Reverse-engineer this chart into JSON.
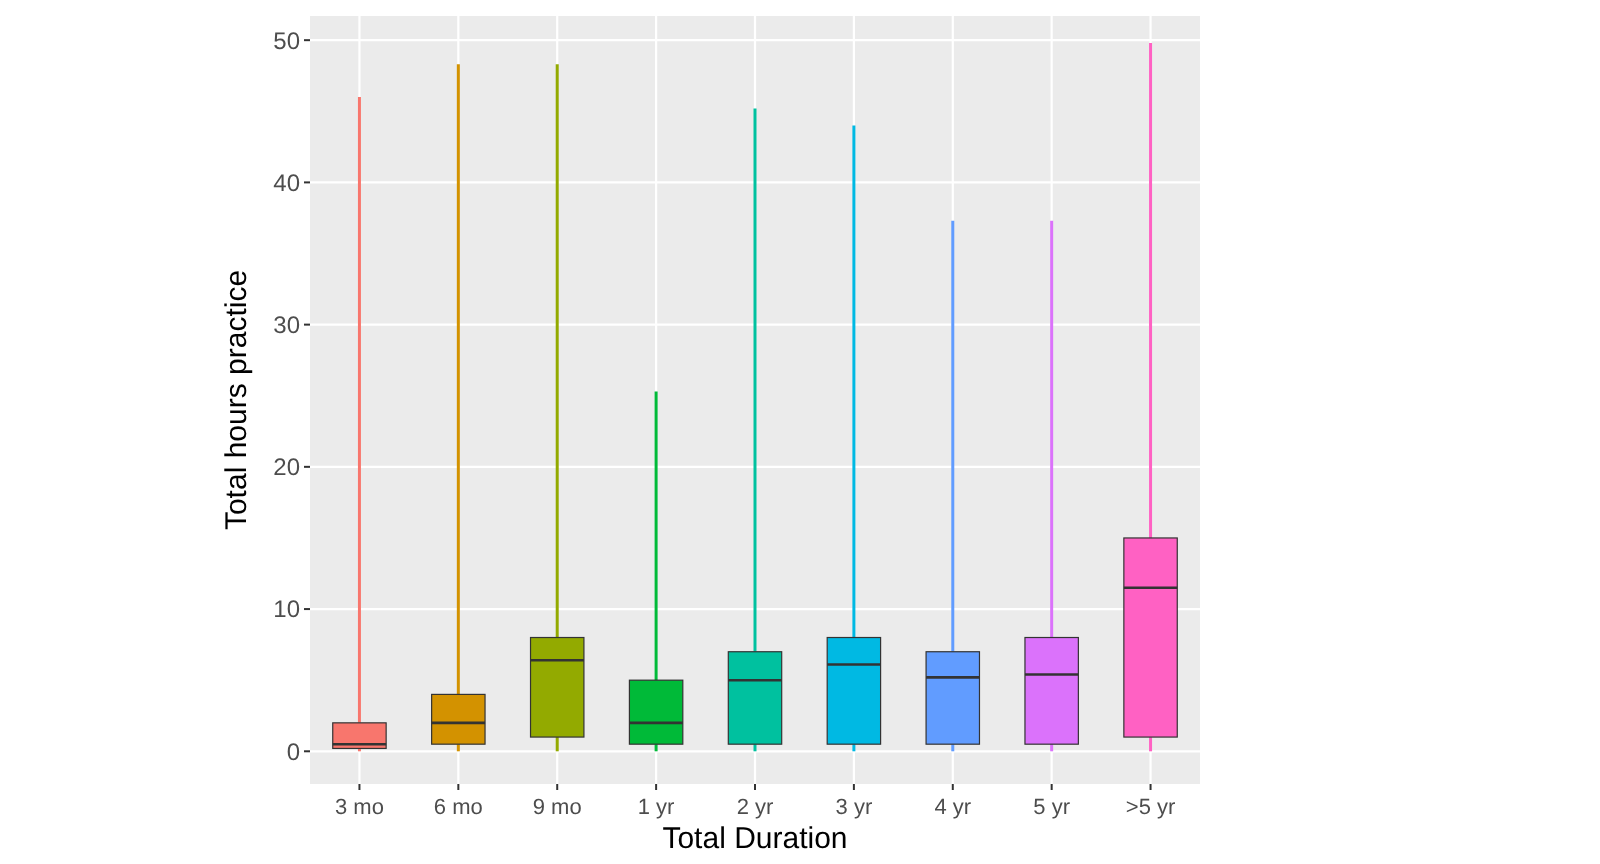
{
  "chart_data": {
    "type": "box",
    "xlabel": "Total Duration",
    "ylabel": "Total hours practice",
    "categories": [
      "3 mo",
      "6 mo",
      "9 mo",
      "1 yr",
      "2 yr",
      "3 yr",
      "4 yr",
      "5 yr",
      ">5 yr"
    ],
    "colors": [
      "#f8766d",
      "#d39200",
      "#93aa00",
      "#00ba38",
      "#00c19f",
      "#00b9e3",
      "#619cff",
      "#db72fb",
      "#ff61c3"
    ],
    "boxes": [
      {
        "low": 0,
        "q1": 0.2,
        "median": 0.5,
        "q3": 2,
        "high": 46
      },
      {
        "low": 0,
        "q1": 0.5,
        "median": 2,
        "q3": 4,
        "high": 48.3
      },
      {
        "low": 0,
        "q1": 1,
        "median": 6.4,
        "q3": 8,
        "high": 48.3
      },
      {
        "low": 0,
        "q1": 0.5,
        "median": 2,
        "q3": 5,
        "high": 25.3
      },
      {
        "low": 0,
        "q1": 0.5,
        "median": 5,
        "q3": 7,
        "high": 45.2
      },
      {
        "low": 0,
        "q1": 0.5,
        "median": 6.1,
        "q3": 8,
        "high": 44
      },
      {
        "low": 0,
        "q1": 0.5,
        "median": 5.2,
        "q3": 7,
        "high": 37.3
      },
      {
        "low": 0,
        "q1": 0.5,
        "median": 5.4,
        "q3": 8,
        "high": 37.3
      },
      {
        "low": 0,
        "q1": 1,
        "median": 11.5,
        "q3": 15,
        "high": 49.8
      }
    ],
    "ylim": [
      -2.3,
      51.7
    ],
    "yticks": [
      0,
      10,
      20,
      30,
      40,
      50
    ],
    "grid": true
  }
}
